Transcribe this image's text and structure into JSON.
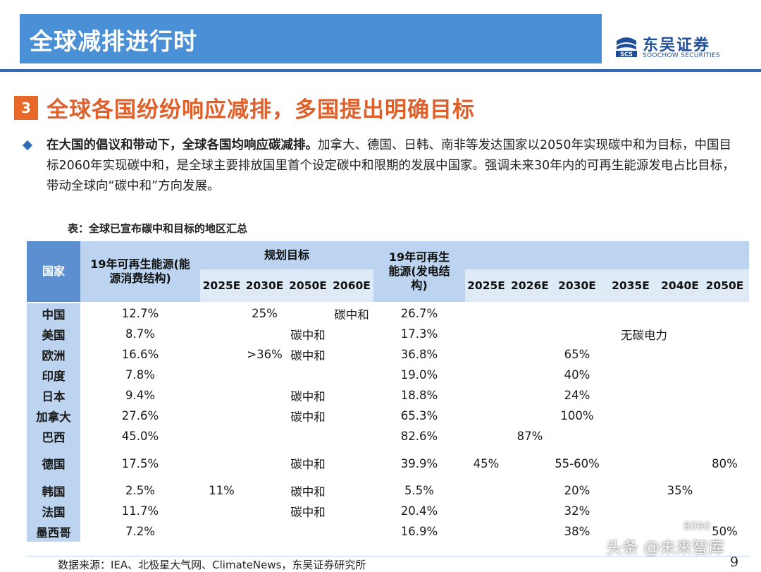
{
  "header": {
    "title": "全球减排进行时"
  },
  "logo": {
    "cn": "东吴证券",
    "en": "SOOCHOW SECURITIES",
    "mark": "SCS"
  },
  "section": {
    "number": "3",
    "title": "全球各国纷纷响应减排，多国提出明确目标"
  },
  "paragraph": {
    "bold": "在大国的倡议和带动下，全球各国均响应碳减排。",
    "rest": "加拿大、德国、日韩、南非等发达国家以2050年实现碳中和为目标，中国目标2060年实现碳中和，是全球主要排放国里首个设定碳中和限期的发展中国家。强调未来30年内的可再生能源发电占比目标，带动全球向“碳中和”方向发展。"
  },
  "table": {
    "caption": "表：全球已宣布碳中和目标的地区汇总",
    "headers": {
      "country": "国家",
      "renew_consumption": "19年可再生能源(能源消费结构)",
      "plan_group": "规划目标",
      "plan_years": [
        "2025E",
        "2030E",
        "2050E",
        "2060E"
      ],
      "renew_power": "19年可再生能源(发电结构)",
      "power_years": [
        "2025E",
        "2026E",
        "2030E",
        "2035E",
        "2040E",
        "2050E"
      ]
    },
    "rows": [
      {
        "country": "中国",
        "rc": "12.7%",
        "p2025": "",
        "p2030": "25%",
        "p2050": "",
        "p2060": "碳中和",
        "rp": "26.7%",
        "g2025": "",
        "g2026": "",
        "g2030": "",
        "g2035": "",
        "g2040": "",
        "g2050": ""
      },
      {
        "country": "美国",
        "rc": "8.7%",
        "p2025": "",
        "p2030": "",
        "p2050": "碳中和",
        "p2060": "",
        "rp": "17.3%",
        "g2025": "",
        "g2026": "",
        "g2030": "",
        "g2035": "无碳电力",
        "g2040": "",
        "g2050": ""
      },
      {
        "country": "欧洲",
        "rc": "16.6%",
        "p2025": "",
        "p2030": ">36%",
        "p2050": "碳中和",
        "p2060": "",
        "rp": "36.8%",
        "g2025": "",
        "g2026": "",
        "g2030": "65%",
        "g2035": "",
        "g2040": "",
        "g2050": ""
      },
      {
        "country": "印度",
        "rc": "7.8%",
        "p2025": "",
        "p2030": "",
        "p2050": "",
        "p2060": "",
        "rp": "19.0%",
        "g2025": "",
        "g2026": "",
        "g2030": "40%",
        "g2035": "",
        "g2040": "",
        "g2050": ""
      },
      {
        "country": "日本",
        "rc": "9.4%",
        "p2025": "",
        "p2030": "",
        "p2050": "碳中和",
        "p2060": "",
        "rp": "18.8%",
        "g2025": "",
        "g2026": "",
        "g2030": "24%",
        "g2035": "",
        "g2040": "",
        "g2050": ""
      },
      {
        "country": "加拿大",
        "rc": "27.6%",
        "p2025": "",
        "p2030": "",
        "p2050": "碳中和",
        "p2060": "",
        "rp": "65.3%",
        "g2025": "",
        "g2026": "",
        "g2030": "100%",
        "g2035": "",
        "g2040": "",
        "g2050": ""
      },
      {
        "country": "巴西",
        "rc": "45.0%",
        "p2025": "",
        "p2030": "",
        "p2050": "",
        "p2060": "",
        "rp": "82.6%",
        "g2025": "",
        "g2026": "87%",
        "g2030": "",
        "g2035": "",
        "g2040": "",
        "g2050": ""
      },
      {
        "country": "德国",
        "rc": "17.5%",
        "p2025": "",
        "p2030": "",
        "p2050": "碳中和",
        "p2060": "",
        "rp": "39.9%",
        "g2025": "45%",
        "g2026": "",
        "g2030": "55-60%",
        "g2035": "",
        "g2040": "",
        "g2050": "80%"
      },
      {
        "country": "韩国",
        "rc": "2.5%",
        "p2025": "11%",
        "p2030": "",
        "p2050": "碳中和",
        "p2060": "",
        "rp": "5.5%",
        "g2025": "",
        "g2026": "",
        "g2030": "20%",
        "g2035": "",
        "g2040": "35%",
        "g2050": ""
      },
      {
        "country": "法国",
        "rc": "11.7%",
        "p2025": "",
        "p2030": "",
        "p2050": "碳中和",
        "p2060": "",
        "rp": "20.4%",
        "g2025": "",
        "g2026": "",
        "g2030": "32%",
        "g2035": "",
        "g2040": "",
        "g2050": ""
      },
      {
        "country": "墨西哥",
        "rc": "7.2%",
        "p2025": "",
        "p2030": "",
        "p2050": "",
        "p2060": "",
        "rp": "16.9%",
        "g2025": "",
        "g2026": "",
        "g2030": "38%",
        "g2035": "",
        "g2040": "",
        "g2050": "50%"
      }
    ]
  },
  "footer": {
    "source": "数据来源：IEA、北极星大气网、ClimateNews，东吴证券研究所",
    "page": "9",
    "watermark": "头条 @未来智库",
    "watermark2": "8090"
  }
}
